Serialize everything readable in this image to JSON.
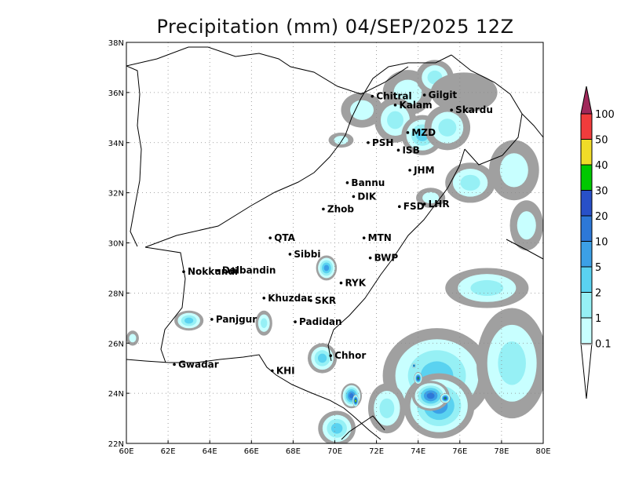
{
  "title": "Precipitation (mm) 04/SEP/2025 12Z",
  "map": {
    "lon_range": [
      60,
      80
    ],
    "lat_range": [
      22,
      38
    ],
    "grid": "dotted",
    "x_ticks": [
      "60E",
      "62E",
      "64E",
      "66E",
      "68E",
      "70E",
      "72E",
      "74E",
      "76E",
      "78E",
      "80E"
    ],
    "y_ticks": [
      "22N",
      "24N",
      "26N",
      "28N",
      "30N",
      "32N",
      "34N",
      "36N",
      "38N"
    ]
  },
  "colorbar": {
    "labels": [
      "0.1",
      "1",
      "2",
      "5",
      "10",
      "20",
      "30",
      "40",
      "50",
      "100"
    ],
    "colors": [
      "#a0a0a0",
      "#c8ffff",
      "#96f0f5",
      "#5ad2f0",
      "#3ca0e6",
      "#2d78d7",
      "#2850c8",
      "#00c800",
      "#f0dc28",
      "#f03c3c",
      "#a0285a"
    ]
  },
  "cities": [
    {
      "name": "Chitral",
      "lon": 71.8,
      "lat": 35.85
    },
    {
      "name": "Gilgit",
      "lon": 74.3,
      "lat": 35.9
    },
    {
      "name": "Kalam",
      "lon": 72.9,
      "lat": 35.5
    },
    {
      "name": "Skardu",
      "lon": 75.6,
      "lat": 35.3
    },
    {
      "name": "MZD",
      "lon": 73.5,
      "lat": 34.4
    },
    {
      "name": "PSH",
      "lon": 71.6,
      "lat": 34.0
    },
    {
      "name": "ISB",
      "lon": 73.05,
      "lat": 33.7
    },
    {
      "name": "JHM",
      "lon": 73.6,
      "lat": 32.9
    },
    {
      "name": "Bannu",
      "lon": 70.6,
      "lat": 32.4
    },
    {
      "name": "DIK",
      "lon": 70.9,
      "lat": 31.85
    },
    {
      "name": "FSD",
      "lon": 73.1,
      "lat": 31.45
    },
    {
      "name": "LHR",
      "lon": 74.3,
      "lat": 31.55
    },
    {
      "name": "Zhob",
      "lon": 69.45,
      "lat": 31.35
    },
    {
      "name": "QTA",
      "lon": 66.9,
      "lat": 30.2
    },
    {
      "name": "MTN",
      "lon": 71.4,
      "lat": 30.2
    },
    {
      "name": "Sibbi",
      "lon": 67.85,
      "lat": 29.55
    },
    {
      "name": "BWP",
      "lon": 71.7,
      "lat": 29.4
    },
    {
      "name": "Dalbandin",
      "lon": 64.4,
      "lat": 28.9
    },
    {
      "name": "Nokkundi",
      "lon": 62.75,
      "lat": 28.85
    },
    {
      "name": "RYK",
      "lon": 70.3,
      "lat": 28.4
    },
    {
      "name": "SKR",
      "lon": 68.85,
      "lat": 27.7
    },
    {
      "name": "Khuzdar",
      "lon": 66.6,
      "lat": 27.8
    },
    {
      "name": "Panjgur",
      "lon": 64.1,
      "lat": 26.95
    },
    {
      "name": "Padidan",
      "lon": 68.1,
      "lat": 26.85
    },
    {
      "name": "Chhor",
      "lon": 69.8,
      "lat": 25.5
    },
    {
      "name": "Gwadar",
      "lon": 62.3,
      "lat": 25.15
    },
    {
      "name": "KHI",
      "lon": 67.0,
      "lat": 24.9
    }
  ],
  "rain_cells": [
    {
      "lon": 73.5,
      "lat": 36.0,
      "rx": 1.2,
      "ry": 0.9,
      "level": 1
    },
    {
      "lon": 74.8,
      "lat": 36.6,
      "rx": 0.9,
      "ry": 0.7,
      "level": 2
    },
    {
      "lon": 76.2,
      "lat": 36.0,
      "rx": 1.6,
      "ry": 0.8,
      "level": 0
    },
    {
      "lon": 71.3,
      "lat": 35.3,
      "rx": 1.0,
      "ry": 0.7,
      "level": 1
    },
    {
      "lon": 72.9,
      "lat": 34.9,
      "rx": 1.0,
      "ry": 0.9,
      "level": 2
    },
    {
      "lon": 74.2,
      "lat": 34.3,
      "rx": 1.0,
      "ry": 0.8,
      "level": 3
    },
    {
      "lon": 75.4,
      "lat": 34.6,
      "rx": 1.1,
      "ry": 0.9,
      "level": 2
    },
    {
      "lon": 70.3,
      "lat": 34.1,
      "rx": 0.6,
      "ry": 0.3,
      "level": 1
    },
    {
      "lon": 76.5,
      "lat": 32.4,
      "rx": 1.2,
      "ry": 0.8,
      "level": 2
    },
    {
      "lon": 78.6,
      "lat": 32.9,
      "rx": 1.2,
      "ry": 1.2,
      "level": 1
    },
    {
      "lon": 79.2,
      "lat": 30.7,
      "rx": 0.8,
      "ry": 1.0,
      "level": 1
    },
    {
      "lon": 74.6,
      "lat": 31.8,
      "rx": 0.7,
      "ry": 0.4,
      "level": 1
    },
    {
      "lon": 69.6,
      "lat": 29.0,
      "rx": 0.5,
      "ry": 0.5,
      "level": 4
    },
    {
      "lon": 63.0,
      "lat": 26.9,
      "rx": 0.7,
      "ry": 0.4,
      "level": 3
    },
    {
      "lon": 60.3,
      "lat": 26.2,
      "rx": 0.3,
      "ry": 0.3,
      "level": 1
    },
    {
      "lon": 66.6,
      "lat": 26.8,
      "rx": 0.4,
      "ry": 0.5,
      "level": 2
    },
    {
      "lon": 69.4,
      "lat": 25.4,
      "rx": 0.7,
      "ry": 0.6,
      "level": 3
    },
    {
      "lon": 70.8,
      "lat": 23.9,
      "rx": 0.5,
      "ry": 0.5,
      "level": 5
    },
    {
      "lon": 70.1,
      "lat": 22.6,
      "rx": 0.9,
      "ry": 0.7,
      "level": 3
    },
    {
      "lon": 74.9,
      "lat": 24.7,
      "rx": 2.6,
      "ry": 1.9,
      "level": 3
    },
    {
      "lon": 78.5,
      "lat": 25.2,
      "rx": 1.7,
      "ry": 2.2,
      "level": 2
    },
    {
      "lon": 77.3,
      "lat": 28.2,
      "rx": 2.0,
      "ry": 0.8,
      "level": 2
    },
    {
      "lon": 75.0,
      "lat": 23.5,
      "rx": 1.7,
      "ry": 1.3,
      "level": 4
    },
    {
      "lon": 74.6,
      "lat": 23.9,
      "rx": 0.9,
      "ry": 0.6,
      "level": 5
    },
    {
      "lon": 72.5,
      "lat": 23.4,
      "rx": 0.9,
      "ry": 1.0,
      "level": 2
    },
    {
      "lon": 74.0,
      "lat": 24.6,
      "rx": 0.2,
      "ry": 0.25,
      "level": 7
    },
    {
      "lon": 75.3,
      "lat": 23.8,
      "rx": 0.25,
      "ry": 0.2,
      "level": 7
    },
    {
      "lon": 71.0,
      "lat": 23.7,
      "rx": 0.15,
      "ry": 0.25,
      "level": 8
    },
    {
      "lon": 73.8,
      "lat": 25.1,
      "rx": 0.1,
      "ry": 0.1,
      "level": 7
    }
  ]
}
